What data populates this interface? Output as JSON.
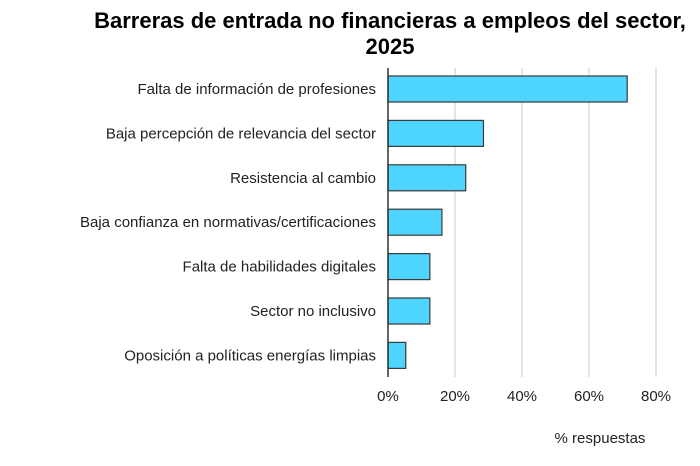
{
  "chart_data": {
    "type": "bar",
    "orientation": "horizontal",
    "title": "Barreras de entrada no financieras a empleos del sector, 2025",
    "xlabel": "% respuestas",
    "ylabel": "",
    "xlim": [
      0,
      80
    ],
    "xticks": [
      "0%",
      "20%",
      "40%",
      "60%",
      "80%"
    ],
    "grid": "vertical",
    "categories": [
      "Falta de información de profesiones",
      "Baja percepción de relevancia del sector",
      "Resistencia al cambio",
      "Baja confianza en normativas/certificaciones",
      "Falta de habilidades digitales",
      "Sector no inclusivo",
      "Oposición a políticas energías limpias"
    ],
    "values": [
      71.4,
      28.5,
      23.2,
      16.1,
      12.5,
      12.5,
      5.3
    ],
    "colors": {
      "bar": "#4dd4ff",
      "bar_edge": "#3a3a3a",
      "grid": "#dcdcdc"
    }
  }
}
